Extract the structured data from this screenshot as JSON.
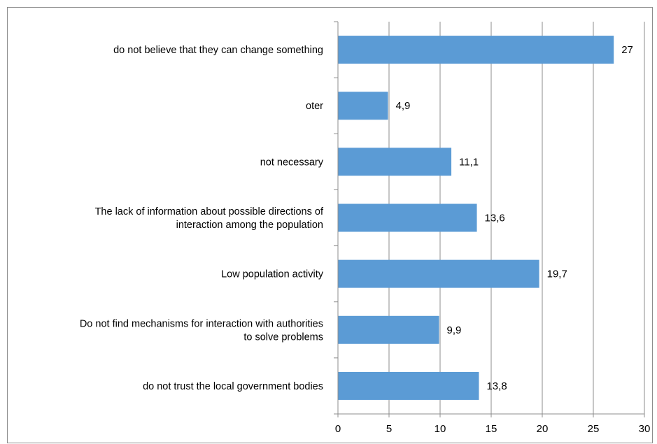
{
  "chart_data": {
    "type": "bar",
    "orientation": "horizontal",
    "categories": [
      [
        "do not believe that they can change something"
      ],
      [
        "oter"
      ],
      [
        "not necessary"
      ],
      [
        "The lack of information about possible directions of",
        "interaction among the population"
      ],
      [
        "Low population activity"
      ],
      [
        "Do not find mechanisms for interaction with authorities",
        "to solve problems"
      ],
      [
        "do not trust the local government bodies"
      ]
    ],
    "values": [
      27,
      4.9,
      11.1,
      13.6,
      19.7,
      9.9,
      13.8
    ],
    "value_labels": [
      "27",
      "4,9",
      "11,1",
      "13,6",
      "19,7",
      "9,9",
      "13,8"
    ],
    "xlim": [
      0,
      30
    ],
    "xticks": [
      0,
      5,
      10,
      15,
      20,
      25,
      30
    ],
    "title": "",
    "xlabel": "",
    "ylabel": "",
    "grid": "vertical",
    "legend": "none",
    "bar_color": "#5b9bd5",
    "grid_color": "#8c8c8c"
  }
}
